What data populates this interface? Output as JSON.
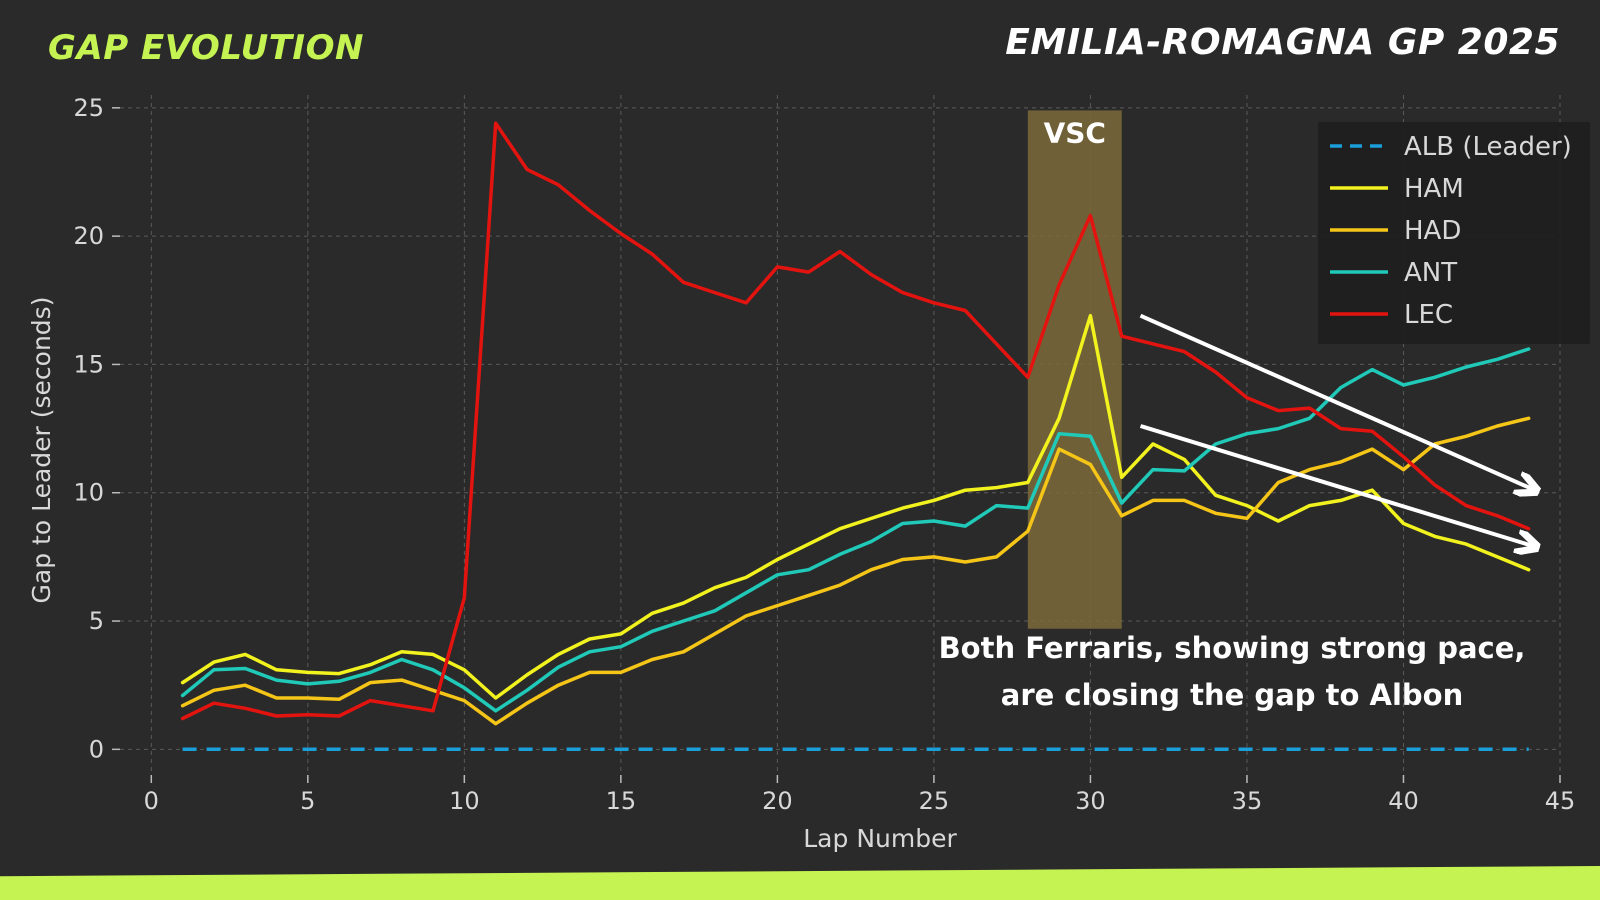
{
  "header": {
    "brand_title": "GAP EVOLUTION",
    "race_title": "EMILIA-ROMAGNA GP 2025"
  },
  "colors": {
    "background": "#2a2a2a",
    "accent": "#c5f352",
    "grid": "#5a5a5a",
    "text": "#d8d8d8",
    "vsc_band": "#7d6a3a"
  },
  "chart_data": {
    "type": "line",
    "title": "",
    "xlabel": "Lap Number",
    "ylabel": "Gap to Leader (seconds)",
    "xlim": [
      -1,
      45
    ],
    "ylim": [
      -1,
      25.5
    ],
    "xticks": [
      0,
      5,
      10,
      15,
      20,
      25,
      30,
      35,
      40,
      45
    ],
    "yticks": [
      0,
      5,
      10,
      15,
      20,
      25
    ],
    "grid": true,
    "legend_position": "top-right",
    "x": [
      1,
      2,
      3,
      4,
      5,
      6,
      7,
      8,
      9,
      10,
      11,
      12,
      13,
      14,
      15,
      16,
      17,
      18,
      19,
      20,
      21,
      22,
      23,
      24,
      25,
      26,
      27,
      28,
      29,
      30,
      31,
      32,
      33,
      34,
      35,
      36,
      37,
      38,
      39,
      40,
      41,
      42,
      43,
      44
    ],
    "series": [
      {
        "name": "ALB (Leader)",
        "color": "#1a9fdb",
        "dashed": true,
        "values": [
          0,
          0,
          0,
          0,
          0,
          0,
          0,
          0,
          0,
          0,
          0,
          0,
          0,
          0,
          0,
          0,
          0,
          0,
          0,
          0,
          0,
          0,
          0,
          0,
          0,
          0,
          0,
          0,
          0,
          0,
          0,
          0,
          0,
          0,
          0,
          0,
          0,
          0,
          0,
          0,
          0,
          0,
          0,
          0
        ]
      },
      {
        "name": "HAM",
        "color": "#f2f21f",
        "dashed": false,
        "values": [
          2.6,
          3.4,
          3.7,
          3.1,
          3.0,
          2.95,
          3.3,
          3.8,
          3.7,
          3.1,
          2.0,
          2.9,
          3.7,
          4.3,
          4.5,
          5.3,
          5.7,
          6.3,
          6.7,
          7.4,
          8.0,
          8.6,
          9.0,
          9.4,
          9.7,
          10.1,
          10.2,
          10.4,
          12.9,
          16.9,
          10.6,
          11.9,
          11.3,
          9.9,
          9.5,
          8.9,
          9.5,
          9.7,
          10.1,
          8.8,
          8.3,
          8.0,
          7.5,
          7.0
        ]
      },
      {
        "name": "HAD",
        "color": "#f5c518",
        "dashed": false,
        "values": [
          1.7,
          2.3,
          2.5,
          2.0,
          2.0,
          1.95,
          2.6,
          2.7,
          2.3,
          1.9,
          1.0,
          1.8,
          2.5,
          3.0,
          3.0,
          3.5,
          3.8,
          4.5,
          5.2,
          5.6,
          6.0,
          6.4,
          7.0,
          7.4,
          7.5,
          7.3,
          7.5,
          8.5,
          11.7,
          11.1,
          9.1,
          9.7,
          9.7,
          9.2,
          9.0,
          10.4,
          10.9,
          11.2,
          11.7,
          10.9,
          11.9,
          12.2,
          12.6,
          12.9
        ]
      },
      {
        "name": "ANT",
        "color": "#20c9b8",
        "dashed": false,
        "values": [
          2.1,
          3.1,
          3.15,
          2.7,
          2.55,
          2.65,
          3.0,
          3.5,
          3.1,
          2.4,
          1.5,
          2.3,
          3.2,
          3.8,
          4.0,
          4.6,
          5.0,
          5.4,
          6.1,
          6.8,
          7.0,
          7.6,
          8.1,
          8.8,
          8.9,
          8.7,
          9.5,
          9.4,
          12.3,
          12.2,
          9.6,
          10.9,
          10.85,
          11.9,
          12.3,
          12.5,
          12.9,
          14.1,
          14.8,
          14.2,
          14.5,
          14.9,
          15.2,
          15.6
        ]
      },
      {
        "name": "LEC",
        "color": "#e3140f",
        "dashed": false,
        "values": [
          1.2,
          1.8,
          1.6,
          1.3,
          1.35,
          1.3,
          1.9,
          1.7,
          1.5,
          5.9,
          24.4,
          22.6,
          22.0,
          21.0,
          20.1,
          19.3,
          18.2,
          17.8,
          17.4,
          18.8,
          18.6,
          19.4,
          18.5,
          17.8,
          17.4,
          17.1,
          15.8,
          14.5,
          18.1,
          20.8,
          16.1,
          15.8,
          15.5,
          14.7,
          13.7,
          13.2,
          13.3,
          12.5,
          12.4,
          11.4,
          10.3,
          9.5,
          9.1,
          8.6
        ]
      }
    ],
    "annotations": [
      {
        "text": "VSC",
        "x_start": 28,
        "x_end": 31,
        "y_start": 4.7,
        "y_end": 24.9
      },
      {
        "text_line1": "Both Ferraris, showing strong pace,",
        "text_line2": "are closing the gap to Albon"
      }
    ],
    "arrows": [
      {
        "x1": 31.6,
        "y1": 16.9,
        "x2": 44.2,
        "y2": 10.1
      },
      {
        "x1": 31.6,
        "y1": 12.6,
        "x2": 44.2,
        "y2": 7.9
      }
    ]
  }
}
